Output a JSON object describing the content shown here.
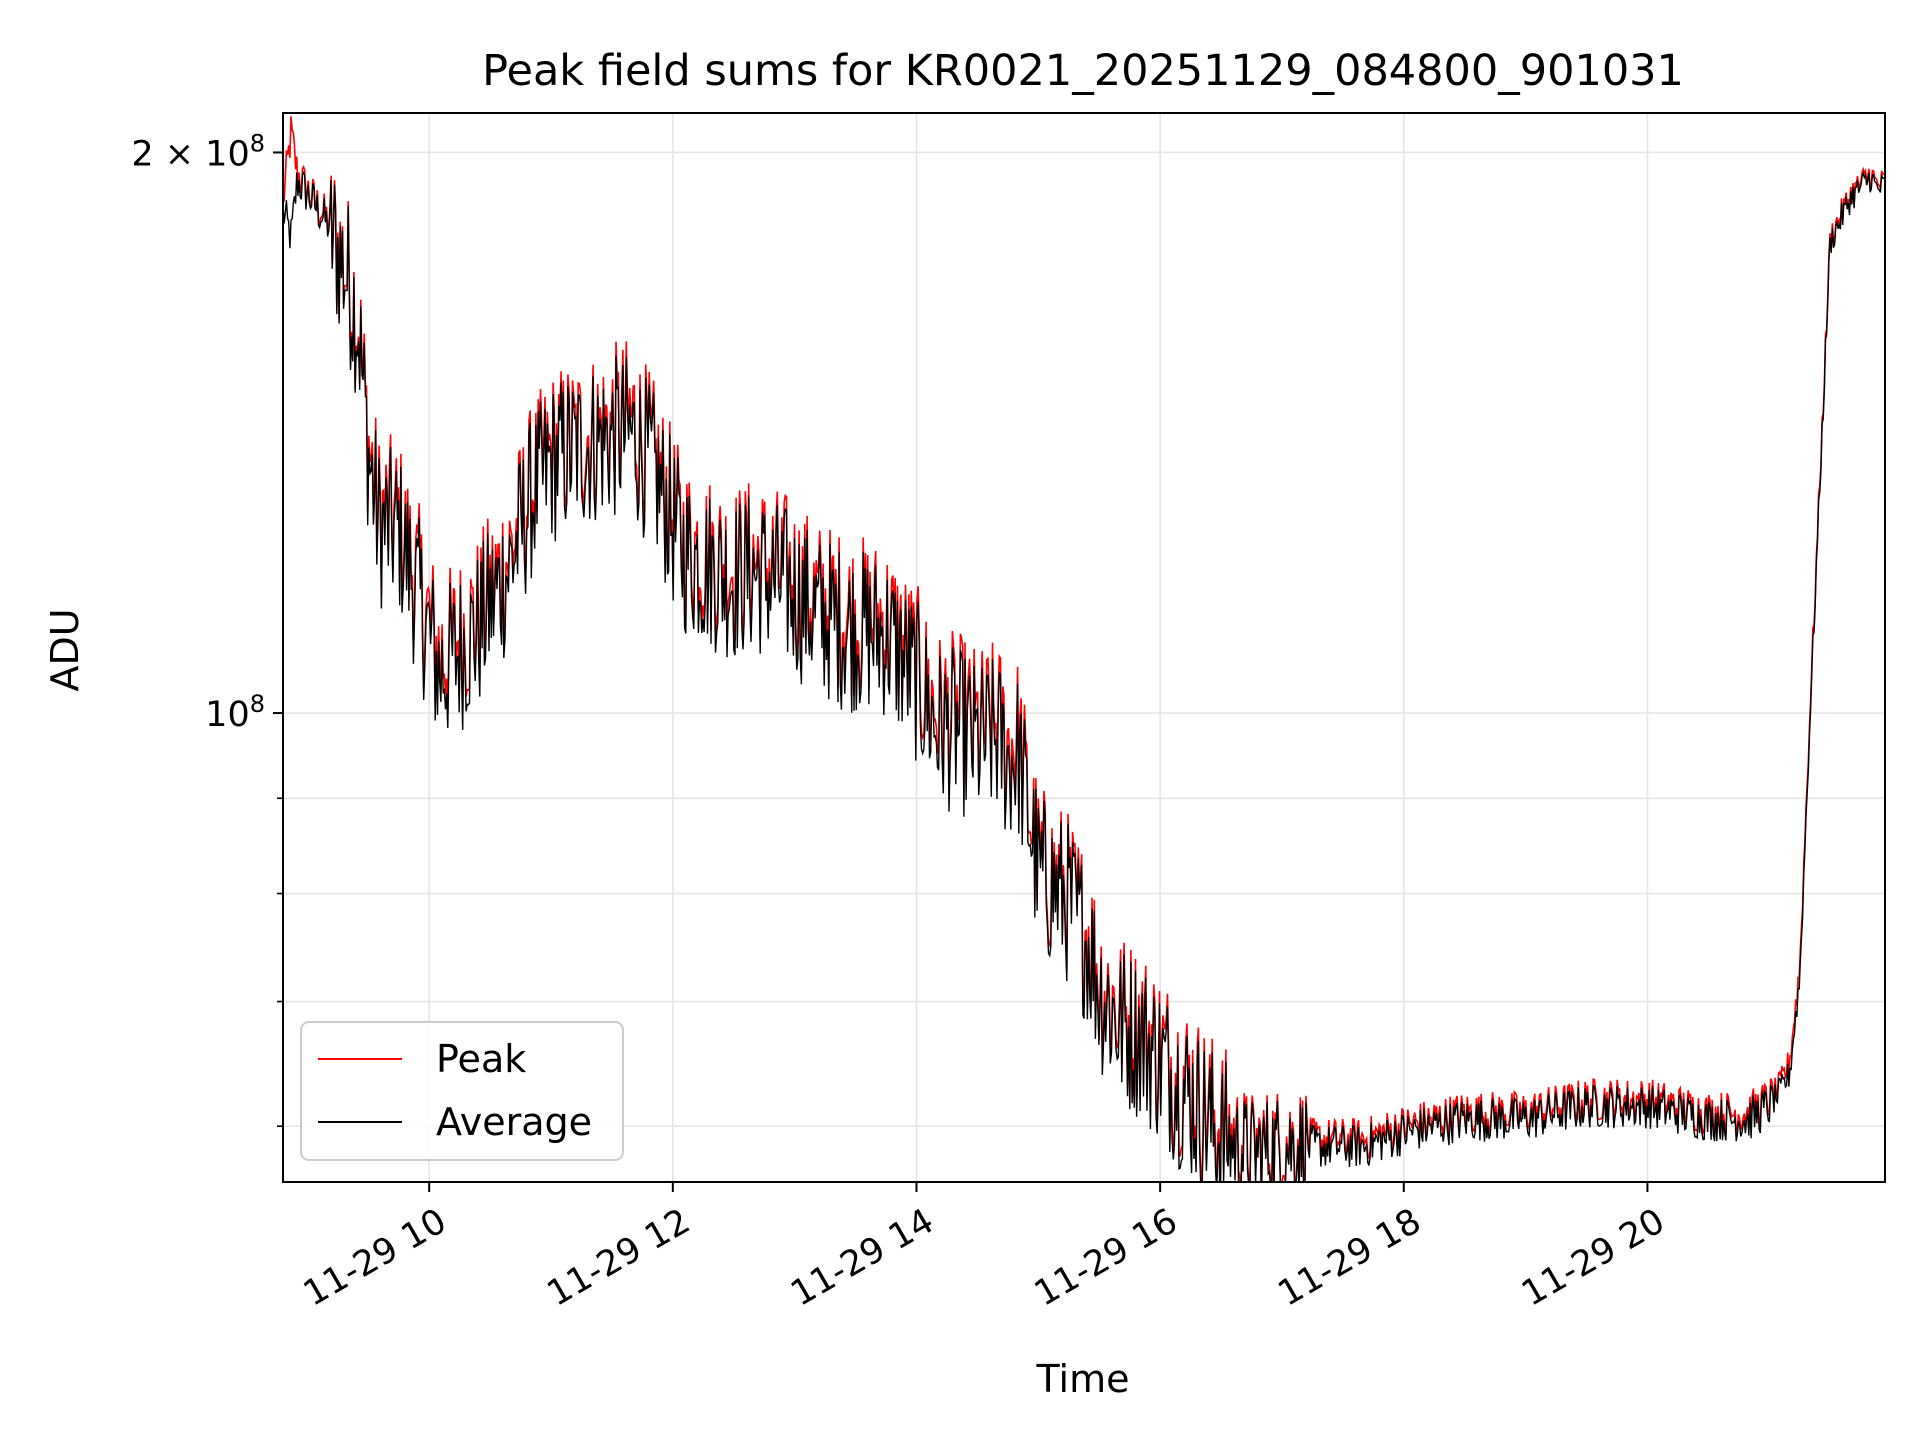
{
  "chart_data": {
    "type": "line",
    "title": "Peak field sums for KR0021_20251129_084800_901031",
    "xlabel": "Time",
    "ylabel": "ADU",
    "y_scale": "log",
    "x_range": [
      "2025-11-29 08:48",
      "2025-11-29 21:57"
    ],
    "ylim": [
      56000000,
      210000000
    ],
    "x_ticks": [
      {
        "value": "2025-11-29 10:00",
        "label": "11-29 10"
      },
      {
        "value": "2025-11-29 12:00",
        "label": "11-29 12"
      },
      {
        "value": "2025-11-29 14:00",
        "label": "11-29 14"
      },
      {
        "value": "2025-11-29 16:00",
        "label": "11-29 16"
      },
      {
        "value": "2025-11-29 18:00",
        "label": "11-29 18"
      },
      {
        "value": "2025-11-29 20:00",
        "label": "11-29 20"
      }
    ],
    "y_major_ticks": [
      {
        "value": 100000000,
        "base": "10",
        "exp": "8"
      },
      {
        "value": 200000000,
        "base": "2 × 10",
        "exp": "8"
      }
    ],
    "y_minor_ticks": [
      60000000,
      70000000,
      80000000,
      90000000
    ],
    "grid": true,
    "legend_position": "lower-left",
    "colors": {
      "peak": "#ff0000",
      "average": "#000000",
      "grid": "#e5e5e5"
    },
    "series": [
      {
        "name": "Peak",
        "color": "#ff0000",
        "x": [
          "2025-11-29 08:48",
          "2025-11-29 08:52",
          "2025-11-29 08:55",
          "2025-11-29 09:00",
          "2025-11-29 09:10",
          "2025-11-29 09:20",
          "2025-11-29 09:25",
          "2025-11-29 09:30",
          "2025-11-29 09:35",
          "2025-11-29 09:45",
          "2025-11-29 09:55",
          "2025-11-29 10:05",
          "2025-11-29 10:15",
          "2025-11-29 10:25",
          "2025-11-29 10:40",
          "2025-11-29 10:50",
          "2025-11-29 11:00",
          "2025-11-29 11:10",
          "2025-11-29 11:25",
          "2025-11-29 11:40",
          "2025-11-29 11:50",
          "2025-11-29 12:05",
          "2025-11-29 12:15",
          "2025-11-29 12:30",
          "2025-11-29 12:40",
          "2025-11-29 12:55",
          "2025-11-29 13:10",
          "2025-11-29 13:25",
          "2025-11-29 13:45",
          "2025-11-29 14:00",
          "2025-11-29 14:10",
          "2025-11-29 14:20",
          "2025-11-29 14:30",
          "2025-11-29 14:40",
          "2025-11-29 14:45",
          "2025-11-29 14:50",
          "2025-11-29 15:00",
          "2025-11-29 15:10",
          "2025-11-29 15:15",
          "2025-11-29 15:20",
          "2025-11-29 15:25",
          "2025-11-29 15:30",
          "2025-11-29 15:40",
          "2025-11-29 15:50",
          "2025-11-29 16:00",
          "2025-11-29 16:15",
          "2025-11-29 16:30",
          "2025-11-29 16:45",
          "2025-11-29 17:00",
          "2025-11-29 17:20",
          "2025-11-29 17:40",
          "2025-11-29 18:00",
          "2025-11-29 18:30",
          "2025-11-29 19:00",
          "2025-11-29 19:30",
          "2025-11-29 20:00",
          "2025-11-29 20:30",
          "2025-11-29 20:50",
          "2025-11-29 21:00",
          "2025-11-29 21:05",
          "2025-11-29 21:10",
          "2025-11-29 21:15",
          "2025-11-29 21:20",
          "2025-11-29 21:30",
          "2025-11-29 21:40",
          "2025-11-29 21:50",
          "2025-11-29 21:53",
          "2025-11-29 21:57"
        ],
        "values": [
          188000000,
          205000000,
          195000000,
          191000000,
          184000000,
          172000000,
          163000000,
          140000000,
          128000000,
          127000000,
          117000000,
          107000000,
          110000000,
          113000000,
          122000000,
          132000000,
          138000000,
          140000000,
          142000000,
          144000000,
          137000000,
          124000000,
          122000000,
          120000000,
          121000000,
          119000000,
          115000000,
          113000000,
          112000000,
          106000000,
          100000000,
          100000000,
          98000000,
          99000000,
          96000000,
          97000000,
          83000000,
          81000000,
          80000000,
          78000000,
          76000000,
          72000000,
          69000000,
          68000000,
          66000000,
          63000000,
          60000000,
          58500000,
          59000000,
          59000000,
          59000000,
          60000000,
          61000000,
          61000000,
          62000000,
          62000000,
          61000000,
          61000000,
          62000000,
          63000000,
          65000000,
          73000000,
          100000000,
          180000000,
          190000000,
          195000000,
          192000000,
          193000000
        ]
      },
      {
        "name": "Average",
        "color": "#000000",
        "x": [
          "2025-11-29 08:48",
          "2025-11-29 08:52",
          "2025-11-29 08:55",
          "2025-11-29 09:00",
          "2025-11-29 09:10",
          "2025-11-29 09:20",
          "2025-11-29 09:25",
          "2025-11-29 09:30",
          "2025-11-29 09:35",
          "2025-11-29 09:45",
          "2025-11-29 09:55",
          "2025-11-29 10:05",
          "2025-11-29 10:15",
          "2025-11-29 10:25",
          "2025-11-29 10:40",
          "2025-11-29 10:50",
          "2025-11-29 11:00",
          "2025-11-29 11:10",
          "2025-11-29 11:25",
          "2025-11-29 11:40",
          "2025-11-29 11:50",
          "2025-11-29 12:05",
          "2025-11-29 12:15",
          "2025-11-29 12:30",
          "2025-11-29 12:40",
          "2025-11-29 12:55",
          "2025-11-29 13:10",
          "2025-11-29 13:25",
          "2025-11-29 13:45",
          "2025-11-29 14:00",
          "2025-11-29 14:10",
          "2025-11-29 14:20",
          "2025-11-29 14:30",
          "2025-11-29 14:40",
          "2025-11-29 14:45",
          "2025-11-29 14:50",
          "2025-11-29 15:00",
          "2025-11-29 15:10",
          "2025-11-29 15:15",
          "2025-11-29 15:20",
          "2025-11-29 15:25",
          "2025-11-29 15:30",
          "2025-11-29 15:40",
          "2025-11-29 15:50",
          "2025-11-29 16:00",
          "2025-11-29 16:15",
          "2025-11-29 16:30",
          "2025-11-29 16:45",
          "2025-11-29 17:00",
          "2025-11-29 17:20",
          "2025-11-29 17:40",
          "2025-11-29 18:00",
          "2025-11-29 18:30",
          "2025-11-29 19:00",
          "2025-11-29 19:30",
          "2025-11-29 20:00",
          "2025-11-29 20:30",
          "2025-11-29 20:50",
          "2025-11-29 21:00",
          "2025-11-29 21:05",
          "2025-11-29 21:10",
          "2025-11-29 21:15",
          "2025-11-29 21:20",
          "2025-11-29 21:30",
          "2025-11-29 21:40",
          "2025-11-29 21:50",
          "2025-11-29 21:53",
          "2025-11-29 21:57"
        ],
        "values": [
          186000000,
          180000000,
          193000000,
          190000000,
          183000000,
          171000000,
          162000000,
          138000000,
          126000000,
          125000000,
          115000000,
          105000000,
          108000000,
          111000000,
          120000000,
          130000000,
          136000000,
          138000000,
          140000000,
          141000000,
          135000000,
          122000000,
          120000000,
          118000000,
          119000000,
          117000000,
          113000000,
          111000000,
          110000000,
          104000000,
          98000000,
          98000000,
          96000000,
          97000000,
          94000000,
          95000000,
          82000000,
          80000000,
          79000000,
          77000000,
          75000000,
          71000000,
          68000000,
          67000000,
          65000000,
          62000000,
          59000000,
          58000000,
          58500000,
          58500000,
          58500000,
          59500000,
          60500000,
          60500000,
          61500000,
          61500000,
          60500000,
          60500000,
          61500000,
          62500000,
          64000000,
          72000000,
          99000000,
          179000000,
          189000000,
          194000000,
          191000000,
          192000000
        ]
      }
    ]
  }
}
